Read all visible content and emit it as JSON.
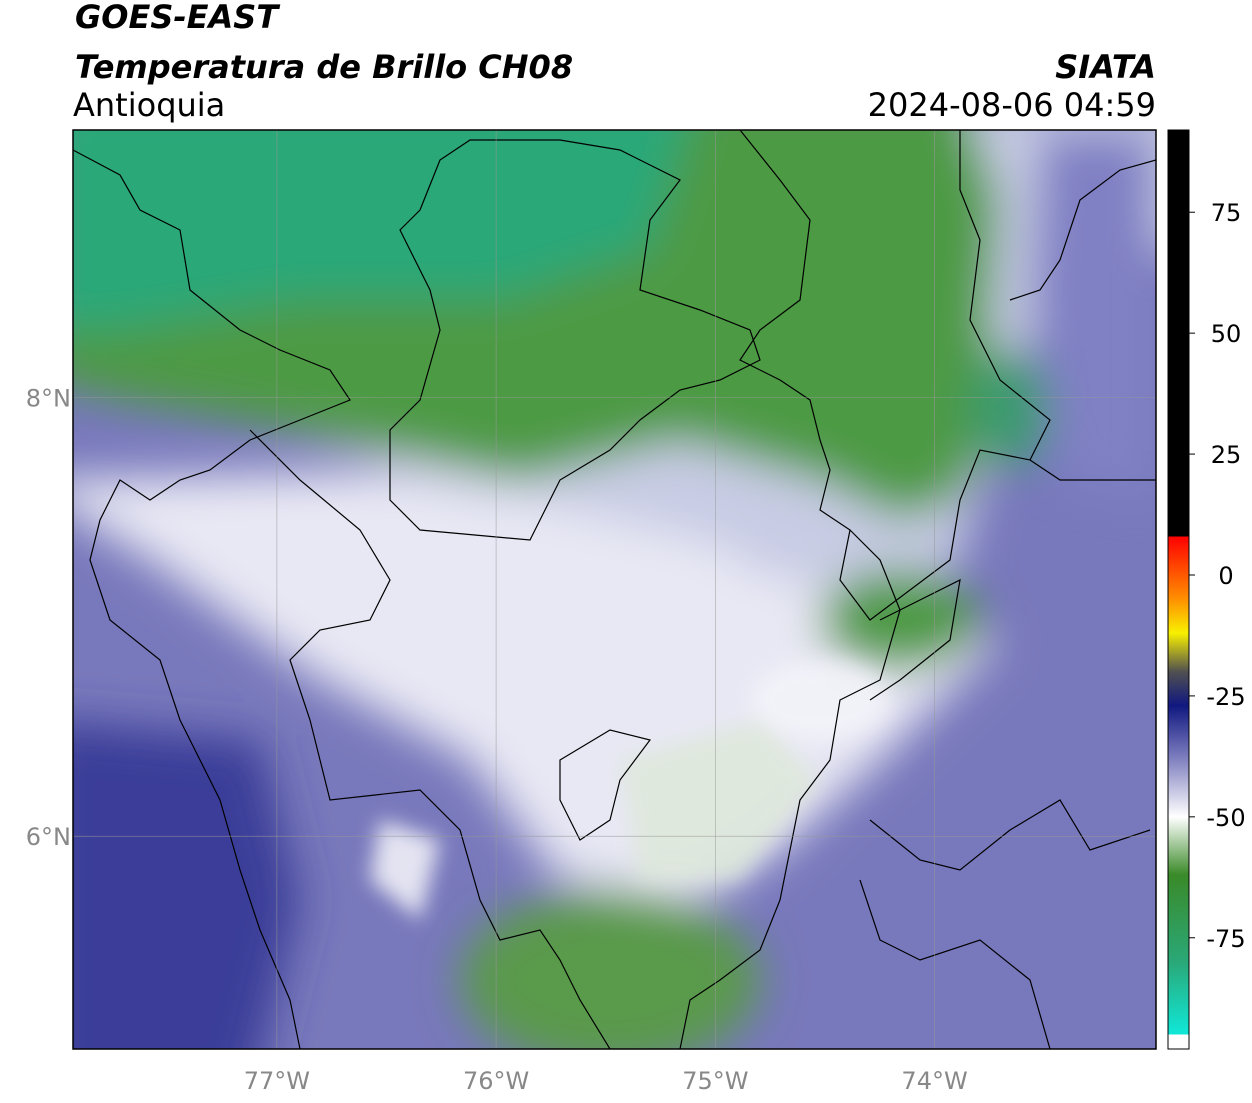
{
  "header": {
    "title": "GOES-EAST",
    "subtitle": "Temperatura de Brillo CH08",
    "region": "Antioquia",
    "source": "SIATA",
    "datetime": "2024-08-06 04:59"
  },
  "map": {
    "xlim": [
      -77.93,
      -72.99
    ],
    "ylim": [
      5.03,
      9.22
    ],
    "xticks": [
      {
        "value": -77,
        "label": "77°W"
      },
      {
        "value": -76,
        "label": "76°W"
      },
      {
        "value": -75,
        "label": "75°W"
      },
      {
        "value": -74,
        "label": "74°W"
      }
    ],
    "yticks": [
      {
        "value": 6,
        "label": "6°N"
      },
      {
        "value": 8,
        "label": "8°N"
      }
    ],
    "grid": true
  },
  "colorbar": {
    "lim": [
      -98,
      92
    ],
    "ticks": [
      -75,
      -50,
      -25,
      0,
      25,
      50,
      75
    ],
    "stops": [
      {
        "value": -98,
        "color": "#ffffff"
      },
      {
        "value": -95,
        "color": "#ffffff"
      },
      {
        "value": -95,
        "color": "#10e8d8"
      },
      {
        "value": -80,
        "color": "#2aa878"
      },
      {
        "value": -62,
        "color": "#3a8a28"
      },
      {
        "value": -50,
        "color": "#ffffff"
      },
      {
        "value": -38,
        "color": "#8080c0"
      },
      {
        "value": -27,
        "color": "#101880"
      },
      {
        "value": -20,
        "color": "#505050"
      },
      {
        "value": -12,
        "color": "#f8f000"
      },
      {
        "value": -5,
        "color": "#ff9000"
      },
      {
        "value": 8,
        "color": "#ff0000"
      },
      {
        "value": 8,
        "color": "#000000"
      },
      {
        "value": 92,
        "color": "#000000"
      }
    ]
  }
}
